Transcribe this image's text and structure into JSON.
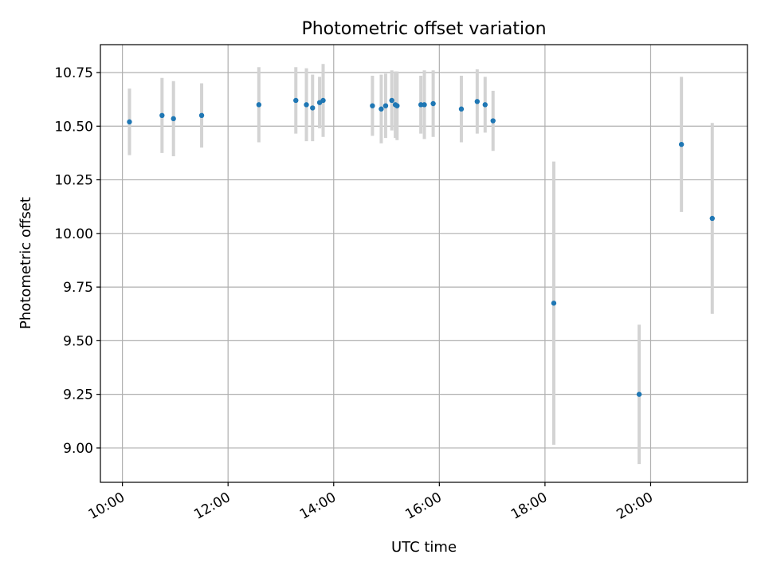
{
  "chart_data": {
    "type": "scatter",
    "title": "Photometric offset variation",
    "xlabel": "UTC time",
    "ylabel": "Photometric offset",
    "x_axis_kind": "time",
    "xlim": [
      "09:35",
      "21:50"
    ],
    "ylim": [
      8.84,
      10.88
    ],
    "x_ticks": [
      "10:00",
      "12:00",
      "14:00",
      "16:00",
      "18:00",
      "20:00"
    ],
    "y_ticks": [
      "9.00",
      "9.25",
      "9.50",
      "9.75",
      "10.00",
      "10.25",
      "10.50",
      "10.75"
    ],
    "grid": true,
    "legend": "none",
    "point_color": "#1f77b4",
    "errorbar_color": "#d3d3d3",
    "points": [
      {
        "x": "10:08",
        "y": 10.52,
        "err": 0.155
      },
      {
        "x": "10:45",
        "y": 10.55,
        "err": 0.175
      },
      {
        "x": "10:58",
        "y": 10.535,
        "err": 0.175
      },
      {
        "x": "11:30",
        "y": 10.55,
        "err": 0.15
      },
      {
        "x": "12:35",
        "y": 10.6,
        "err": 0.175
      },
      {
        "x": "13:17",
        "y": 10.62,
        "err": 0.155
      },
      {
        "x": "13:29",
        "y": 10.6,
        "err": 0.17
      },
      {
        "x": "13:36",
        "y": 10.585,
        "err": 0.155
      },
      {
        "x": "13:44",
        "y": 10.61,
        "err": 0.12
      },
      {
        "x": "13:48",
        "y": 10.62,
        "err": 0.17
      },
      {
        "x": "14:44",
        "y": 10.595,
        "err": 0.14
      },
      {
        "x": "14:54",
        "y": 10.58,
        "err": 0.16
      },
      {
        "x": "14:59",
        "y": 10.595,
        "err": 0.15
      },
      {
        "x": "15:06",
        "y": 10.62,
        "err": 0.14
      },
      {
        "x": "15:10",
        "y": 10.6,
        "err": 0.155
      },
      {
        "x": "15:12",
        "y": 10.595,
        "err": 0.16
      },
      {
        "x": "15:39",
        "y": 10.6,
        "err": 0.135
      },
      {
        "x": "15:43",
        "y": 10.6,
        "err": 0.16
      },
      {
        "x": "15:53",
        "y": 10.605,
        "err": 0.155
      },
      {
        "x": "16:25",
        "y": 10.58,
        "err": 0.155
      },
      {
        "x": "16:43",
        "y": 10.615,
        "err": 0.15
      },
      {
        "x": "16:52",
        "y": 10.6,
        "err": 0.13
      },
      {
        "x": "17:01",
        "y": 10.525,
        "err": 0.14
      },
      {
        "x": "18:10",
        "y": 9.675,
        "err": 0.66
      },
      {
        "x": "19:47",
        "y": 9.25,
        "err": 0.325
      },
      {
        "x": "20:35",
        "y": 10.415,
        "err": 0.315
      },
      {
        "x": "21:10",
        "y": 10.07,
        "err": 0.445
      }
    ]
  }
}
